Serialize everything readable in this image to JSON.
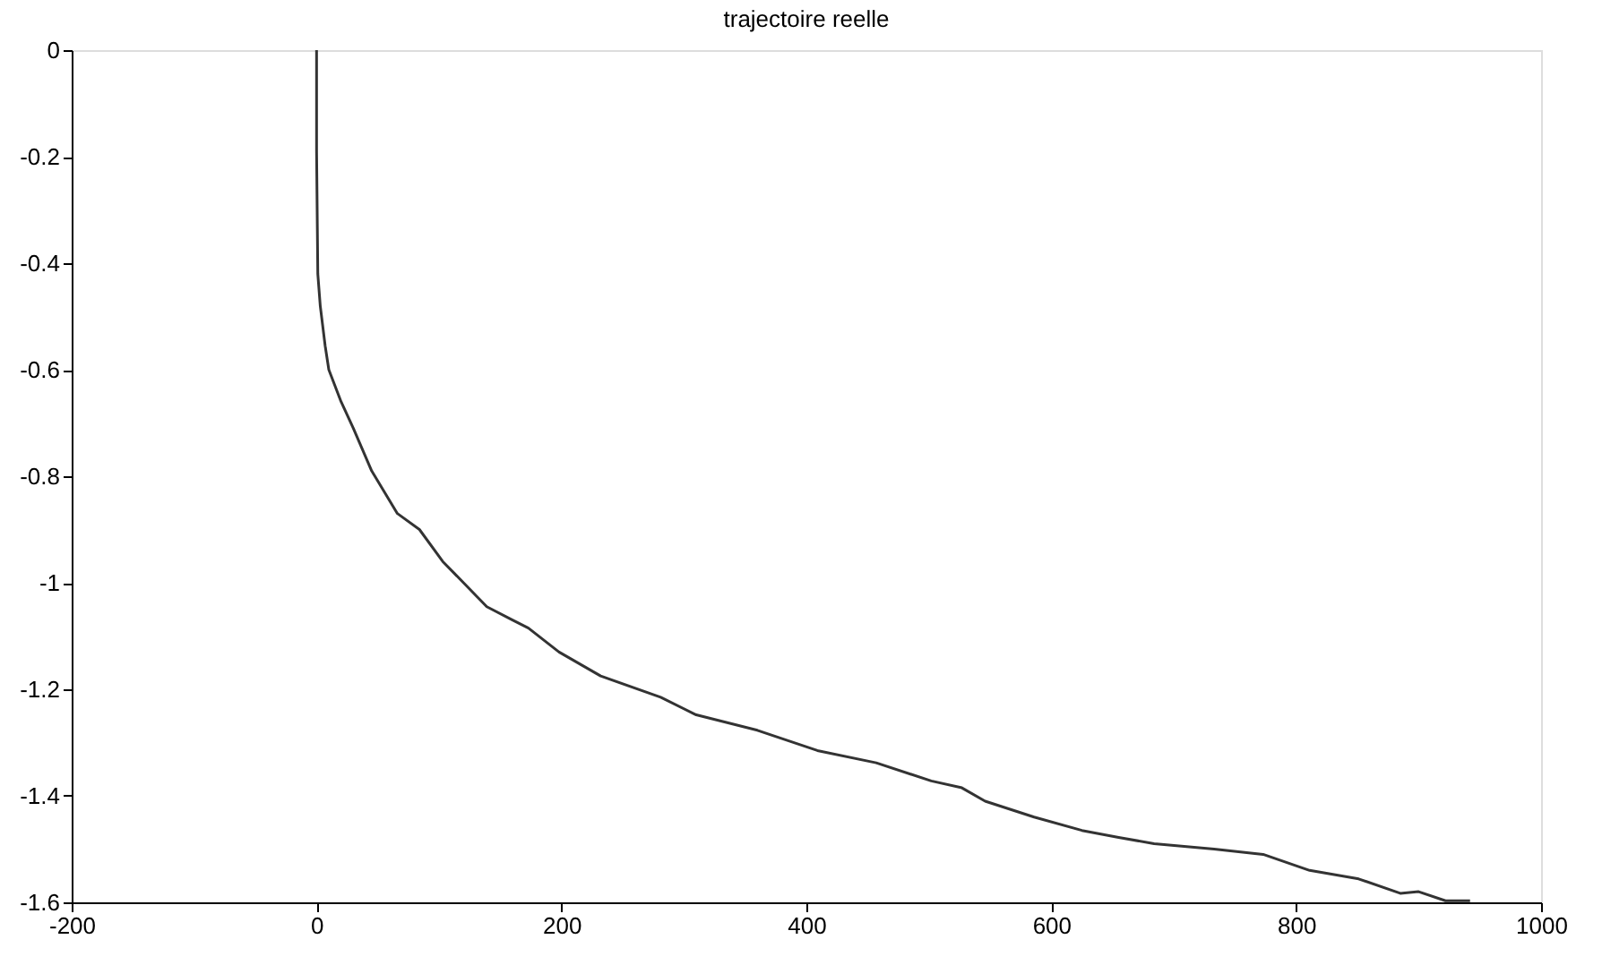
{
  "chart_data": {
    "type": "line",
    "title": "trajectoire reelle",
    "x": [
      0,
      0,
      1,
      3,
      7,
      10,
      20,
      30,
      45,
      66,
      84,
      103,
      120,
      139,
      160,
      173,
      198,
      232,
      281,
      310,
      360,
      409,
      457,
      502,
      527,
      546,
      586,
      625,
      655,
      684,
      733,
      773,
      811,
      851,
      885,
      900,
      922,
      942
    ],
    "series": [
      {
        "color": "#333333",
        "values": [
          0,
          -0.19,
          -0.42,
          -0.48,
          -0.555,
          -0.6,
          -0.66,
          -0.71,
          -0.79,
          -0.87,
          -0.9,
          -0.96,
          -1.0,
          -1.045,
          -1.07,
          -1.085,
          -1.13,
          -1.175,
          -1.215,
          -1.248,
          -1.277,
          -1.315,
          -1.338,
          -1.372,
          -1.385,
          -1.41,
          -1.44,
          -1.465,
          -1.478,
          -1.49,
          -1.5,
          -1.51,
          -1.54,
          -1.556,
          -1.583,
          -1.58,
          -1.597,
          -1.597
        ]
      }
    ],
    "xlim": [
      -200,
      1000
    ],
    "xticks": [
      -200,
      0,
      200,
      400,
      600,
      800,
      1000
    ],
    "ylim": [
      -1.6,
      0
    ],
    "yticks": [
      -1.6,
      -1.4,
      -1.2,
      -1,
      -0.8,
      -0.6,
      -0.4,
      -0.2,
      0
    ],
    "grid": false,
    "marker": "none",
    "line_style": "solid"
  }
}
